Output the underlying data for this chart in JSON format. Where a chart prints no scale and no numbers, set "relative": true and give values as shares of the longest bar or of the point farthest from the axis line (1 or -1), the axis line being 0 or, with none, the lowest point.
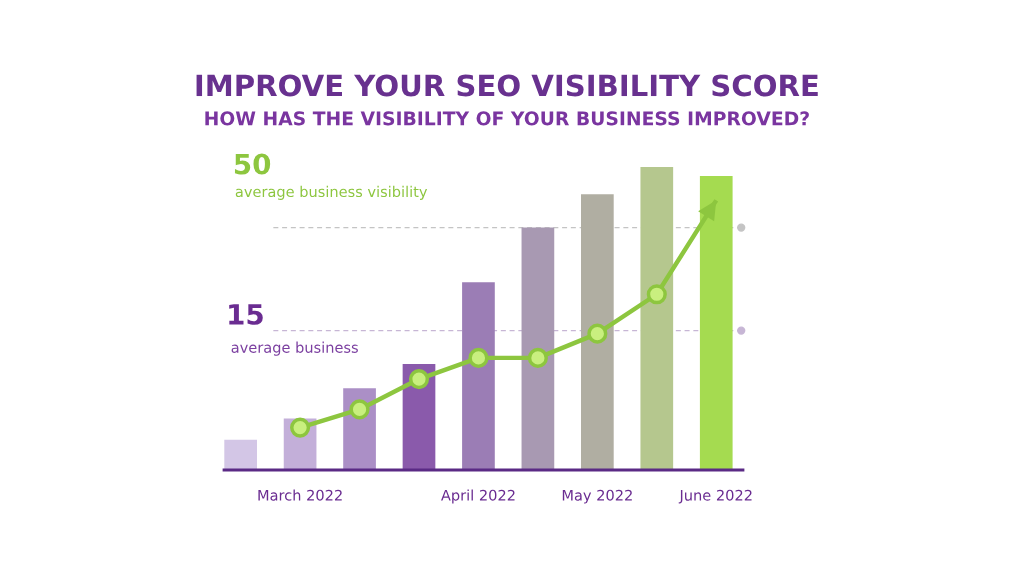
{
  "chart_data": {
    "type": "bar",
    "title": "IMPROVE YOUR SEO VISIBILITY SCORE",
    "subtitle": "HOW HAS THE VISIBILITY OF YOUR BUSINESS IMPROVED?",
    "relative": true,
    "categories": [
      null,
      "March 2022",
      null,
      null,
      "April 2022",
      null,
      "May 2022",
      null,
      "June 2022"
    ],
    "series": [
      {
        "colors": [
          "#d3c6e6",
          "#c3afd9",
          "#ab8fc6",
          "#8a5aab",
          "#9b7db5",
          "#a899b2",
          "#b0aea2",
          "#b5c78e",
          "#a5db50"
        ],
        "values": [
          0.1,
          0.17,
          0.27,
          0.35,
          0.62,
          0.8,
          0.91,
          1,
          0.97
        ]
      },
      {
        "type": "line",
        "color": "#8dc63f",
        "marker": "circle",
        "line_style": "solid",
        "values": [
          null,
          0.14,
          0.2,
          0.3,
          0.37,
          0.37,
          0.45,
          0.58,
          0.89
        ]
      }
    ],
    "ref_lines": [
      {
        "axis": "y",
        "value": 0.8,
        "color": "#c4c4c4",
        "line_style": "dashed"
      },
      {
        "axis": "y",
        "value": 0.46,
        "color": "#c7b6d5",
        "line_style": "dashed"
      }
    ],
    "annotations": [
      "50",
      "average business visibility",
      "15",
      "average business"
    ],
    "grid": false,
    "tick_labels": "x"
  }
}
